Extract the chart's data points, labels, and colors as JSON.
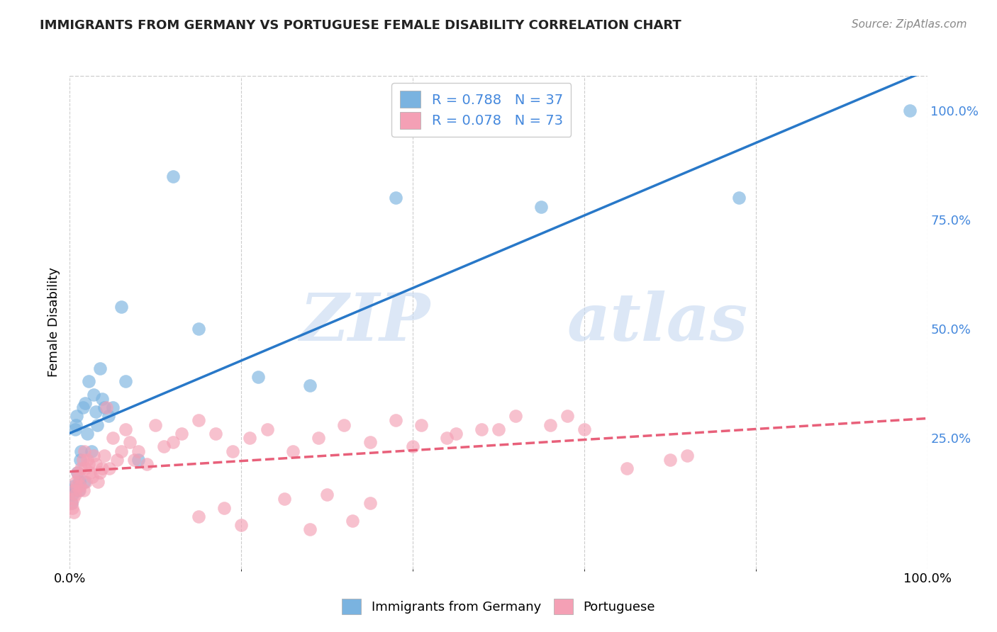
{
  "title": "IMMIGRANTS FROM GERMANY VS PORTUGUESE FEMALE DISABILITY CORRELATION CHART",
  "source": "Source: ZipAtlas.com",
  "ylabel": "Female Disability",
  "legend_blue_label": "Immigrants from Germany",
  "legend_pink_label": "Portuguese",
  "legend_blue_r": "R = 0.788",
  "legend_blue_n": "N = 37",
  "legend_pink_r": "R = 0.078",
  "legend_pink_n": "N = 73",
  "blue_color": "#7ab3e0",
  "pink_color": "#f4a0b5",
  "blue_line_color": "#2878c8",
  "pink_line_color": "#e8607a",
  "watermark_zip": "ZIP",
  "watermark_atlas": "atlas",
  "right_ytick_vals": [
    0.25,
    0.5,
    0.75,
    1.0
  ],
  "right_ytick_labels": [
    "25.0%",
    "50.0%",
    "75.0%",
    "100.0%"
  ],
  "blue_scatter_x": [
    0.002,
    0.003,
    0.004,
    0.005,
    0.006,
    0.007,
    0.008,
    0.009,
    0.01,
    0.011,
    0.012,
    0.013,
    0.015,
    0.017,
    0.018,
    0.02,
    0.022,
    0.025,
    0.028,
    0.03,
    0.032,
    0.035,
    0.038,
    0.04,
    0.045,
    0.05,
    0.06,
    0.065,
    0.08,
    0.12,
    0.15,
    0.22,
    0.28,
    0.38,
    0.55,
    0.78,
    0.98
  ],
  "blue_scatter_y": [
    0.1,
    0.12,
    0.13,
    0.14,
    0.27,
    0.28,
    0.3,
    0.17,
    0.13,
    0.15,
    0.2,
    0.22,
    0.32,
    0.15,
    0.33,
    0.26,
    0.38,
    0.22,
    0.35,
    0.31,
    0.28,
    0.41,
    0.34,
    0.32,
    0.3,
    0.32,
    0.55,
    0.38,
    0.2,
    0.85,
    0.5,
    0.39,
    0.37,
    0.8,
    0.78,
    0.8,
    1.0
  ],
  "pink_scatter_x": [
    0.002,
    0.003,
    0.004,
    0.005,
    0.005,
    0.006,
    0.007,
    0.008,
    0.009,
    0.01,
    0.011,
    0.012,
    0.013,
    0.015,
    0.016,
    0.017,
    0.018,
    0.019,
    0.02,
    0.022,
    0.024,
    0.026,
    0.028,
    0.03,
    0.033,
    0.035,
    0.038,
    0.04,
    0.043,
    0.046,
    0.05,
    0.055,
    0.06,
    0.065,
    0.07,
    0.075,
    0.08,
    0.09,
    0.1,
    0.11,
    0.12,
    0.13,
    0.15,
    0.17,
    0.19,
    0.21,
    0.23,
    0.26,
    0.29,
    0.32,
    0.35,
    0.38,
    0.41,
    0.44,
    0.48,
    0.52,
    0.56,
    0.6,
    0.65,
    0.7,
    0.72,
    0.28,
    0.33,
    0.2,
    0.15,
    0.18,
    0.25,
    0.3,
    0.35,
    0.4,
    0.45,
    0.5,
    0.58
  ],
  "pink_scatter_y": [
    0.1,
    0.09,
    0.11,
    0.13,
    0.08,
    0.12,
    0.15,
    0.14,
    0.17,
    0.16,
    0.13,
    0.14,
    0.18,
    0.2,
    0.13,
    0.22,
    0.18,
    0.15,
    0.2,
    0.19,
    0.17,
    0.16,
    0.21,
    0.19,
    0.15,
    0.17,
    0.18,
    0.21,
    0.32,
    0.18,
    0.25,
    0.2,
    0.22,
    0.27,
    0.24,
    0.2,
    0.22,
    0.19,
    0.28,
    0.23,
    0.24,
    0.26,
    0.29,
    0.26,
    0.22,
    0.25,
    0.27,
    0.22,
    0.25,
    0.28,
    0.24,
    0.29,
    0.28,
    0.25,
    0.27,
    0.3,
    0.28,
    0.27,
    0.18,
    0.2,
    0.21,
    0.04,
    0.06,
    0.05,
    0.07,
    0.09,
    0.11,
    0.12,
    0.1,
    0.23,
    0.26,
    0.27,
    0.3
  ],
  "xlim": [
    0.0,
    1.0
  ],
  "ylim": [
    -0.05,
    1.08
  ],
  "background_color": "#ffffff",
  "grid_color": "#cccccc",
  "title_color": "#222222",
  "right_axis_color": "#4488dd"
}
